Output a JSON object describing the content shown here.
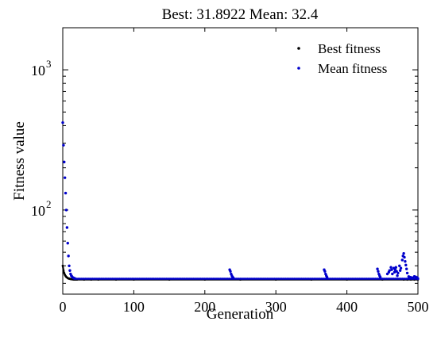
{
  "chart_data": {
    "type": "scatter",
    "title": "Best: 31.8922 Mean: 32.4",
    "xlabel": "Generation",
    "ylabel": "Fitness value",
    "xlim": [
      0,
      500
    ],
    "ylim_log10": [
      1.4,
      3.3
    ],
    "yscale": "log",
    "grid": false,
    "legend_position": "top-right",
    "x_ticks": [
      {
        "value": 0,
        "label": "0"
      },
      {
        "value": 100,
        "label": "100"
      },
      {
        "value": 200,
        "label": "200"
      },
      {
        "value": 300,
        "label": "300"
      },
      {
        "value": 400,
        "label": "400"
      },
      {
        "value": 500,
        "label": "500"
      }
    ],
    "y_ticks": [
      {
        "value": 100,
        "base": "10",
        "exponent": "2"
      },
      {
        "value": 1000,
        "base": "10",
        "exponent": "3"
      }
    ],
    "series": [
      {
        "name": "Best fitness",
        "color": "#000000",
        "points": [
          [
            0,
            40
          ],
          [
            1,
            37
          ],
          [
            2,
            35.5
          ],
          [
            3,
            34.5
          ],
          [
            4,
            33.8
          ],
          [
            5,
            33.3
          ],
          [
            6,
            33.0
          ],
          [
            7,
            32.7
          ],
          [
            8,
            32.5
          ],
          [
            9,
            32.4
          ],
          [
            10,
            32.3
          ],
          [
            11,
            32.2
          ],
          [
            12,
            32.1
          ],
          [
            13,
            32.05
          ],
          [
            14,
            32.0
          ],
          [
            15,
            31.95
          ],
          [
            16,
            31.92
          ],
          [
            17,
            31.9
          ],
          [
            18,
            31.9
          ],
          [
            19,
            31.9
          ],
          [
            20,
            31.9
          ],
          [
            30,
            31.9
          ],
          [
            40,
            31.9
          ],
          [
            50,
            31.9
          ],
          [
            75,
            31.9
          ],
          [
            100,
            31.9
          ],
          [
            150,
            31.9
          ],
          [
            200,
            31.9
          ],
          [
            250,
            31.9
          ],
          [
            300,
            31.9
          ],
          [
            350,
            31.9
          ],
          [
            400,
            31.9
          ],
          [
            450,
            31.9
          ],
          [
            480,
            31.9
          ],
          [
            485,
            31.8922
          ],
          [
            490,
            31.8922
          ],
          [
            495,
            31.8922
          ],
          [
            500,
            31.8922
          ]
        ]
      },
      {
        "name": "Mean fitness",
        "color": "#0000cc",
        "points": [
          [
            0,
            420
          ],
          [
            1,
            290
          ],
          [
            2,
            220
          ],
          [
            3,
            170
          ],
          [
            4,
            132
          ],
          [
            5,
            100
          ],
          [
            6,
            75
          ],
          [
            7,
            58
          ],
          [
            8,
            47
          ],
          [
            9,
            40
          ],
          [
            10,
            37
          ],
          [
            11,
            35
          ],
          [
            12,
            34
          ],
          [
            13,
            33.5
          ],
          [
            14,
            33
          ],
          [
            15,
            32.8
          ],
          [
            16,
            32.6
          ],
          [
            17,
            32.5
          ],
          [
            235,
            37.5
          ],
          [
            236,
            36.5
          ],
          [
            237,
            35
          ],
          [
            238,
            34
          ],
          [
            239,
            33.3
          ],
          [
            240,
            32.8
          ],
          [
            368,
            37.5
          ],
          [
            369,
            36.5
          ],
          [
            370,
            35
          ],
          [
            371,
            34
          ],
          [
            372,
            33.2
          ],
          [
            443,
            38
          ],
          [
            444,
            36.5
          ],
          [
            445,
            35
          ],
          [
            446,
            34
          ],
          [
            447,
            33.2
          ],
          [
            457,
            35
          ],
          [
            459,
            36
          ],
          [
            460,
            37
          ],
          [
            462,
            39
          ],
          [
            463,
            37.5
          ],
          [
            464,
            35
          ],
          [
            466,
            38.5
          ],
          [
            467,
            36
          ],
          [
            468,
            37.5
          ],
          [
            469,
            39
          ],
          [
            470,
            36.5
          ],
          [
            471,
            34
          ],
          [
            472,
            35.5
          ],
          [
            474,
            40
          ],
          [
            475,
            37
          ],
          [
            476,
            38.5
          ],
          [
            478,
            44
          ],
          [
            479,
            47
          ],
          [
            480,
            49
          ],
          [
            481,
            46
          ],
          [
            482,
            43
          ],
          [
            483,
            40.5
          ],
          [
            484,
            38
          ],
          [
            485,
            35.5
          ],
          [
            487,
            33.5
          ],
          [
            489,
            33.2
          ],
          [
            491,
            33
          ],
          [
            493,
            32.8
          ],
          [
            495,
            33.6
          ],
          [
            497,
            33.3
          ],
          [
            499,
            33
          ],
          [
            500,
            32.4
          ]
        ]
      }
    ]
  }
}
